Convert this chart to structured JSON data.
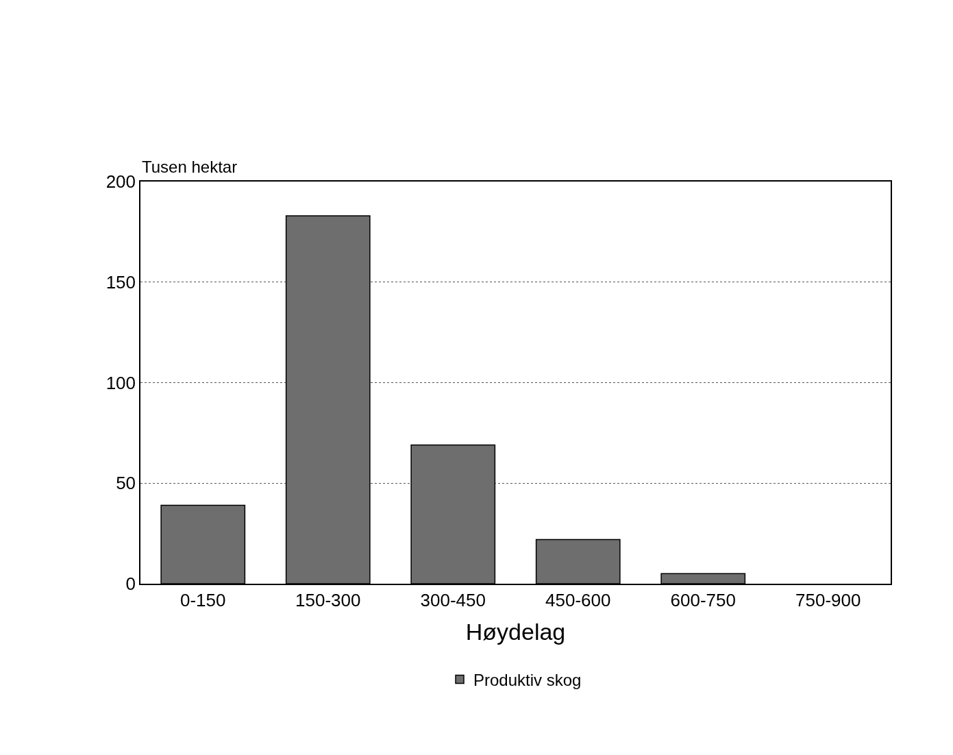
{
  "chart_data": {
    "type": "bar",
    "xlabel": "Høydelag",
    "ylabel": "Tusen hektar",
    "categories": [
      "0-150",
      "150-300",
      "300-450",
      "450-600",
      "600-750",
      "750-900"
    ],
    "series": [
      {
        "name": "Produktiv skog",
        "color": "#6e6e6e",
        "values": [
          39,
          183,
          69,
          22,
          5,
          null
        ]
      }
    ],
    "ylim": [
      0,
      200
    ],
    "yticks": [
      0,
      50,
      100,
      150,
      200
    ],
    "grid": "y",
    "legend": "bottom"
  }
}
